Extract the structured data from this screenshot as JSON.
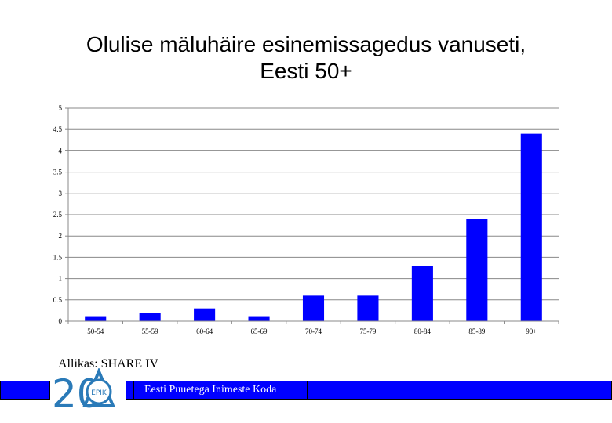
{
  "title_line1": "Olulise mäluhäire esinemissagedus vanuseti,",
  "title_line2": "Eesti 50+",
  "source": "Allikas: SHARE IV",
  "footer": {
    "org_name": "Eesti Puuetega Inimeste Koda",
    "logo_number": "20",
    "logo_abbr": "EPIK"
  },
  "colors": {
    "bar": "#0000ff",
    "footer_bar": "#0000ff",
    "logo": "#2a7ab8"
  },
  "chart_data": {
    "type": "bar",
    "title": "Olulise mäluhäire esinemissagedus vanuseti, Eesti 50+",
    "categories": [
      "50-54",
      "55-59",
      "60-64",
      "65-69",
      "70-74",
      "75-79",
      "80-84",
      "85-89",
      "90+"
    ],
    "values": [
      0.1,
      0.2,
      0.3,
      0.1,
      0.6,
      0.6,
      1.3,
      2.4,
      4.4
    ],
    "ylim": [
      0,
      5
    ],
    "yticks": [
      "0",
      "0.5",
      "1",
      "1.5",
      "2",
      "2.5",
      "3",
      "3.5",
      "4",
      "4.5",
      "5"
    ],
    "xlabel": "",
    "ylabel": "",
    "grid": true,
    "legend": "none"
  }
}
